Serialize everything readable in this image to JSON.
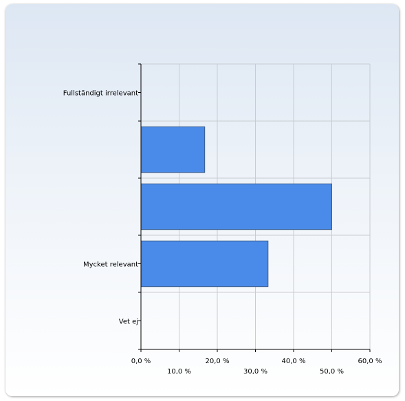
{
  "chart_data": {
    "type": "bar",
    "orientation": "horizontal",
    "categories": [
      "Fullständigt irrelevant",
      "",
      "",
      "Mycket relevant",
      "Vet ej"
    ],
    "values": [
      0,
      16.7,
      50.0,
      33.3,
      0
    ],
    "xlim": [
      0,
      60
    ],
    "xticks": [
      "0,0 %",
      "10,0 %",
      "20,0 %",
      "30,0 %",
      "40,0 %",
      "50,0 %",
      "60,0 %"
    ],
    "xlabel": "",
    "ylabel": "",
    "title": "",
    "grid": true,
    "legend": "none",
    "bar_color": "#4a8ae8",
    "bar_border": "#3a5a8a"
  }
}
